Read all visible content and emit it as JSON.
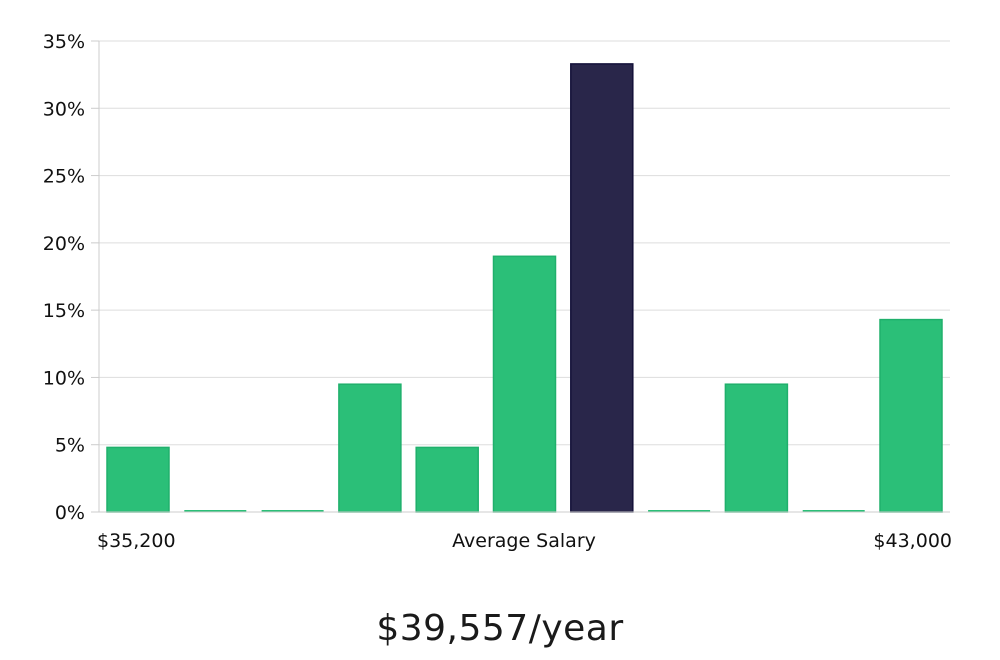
{
  "chart_data": {
    "type": "bar",
    "x_start_label": "$35,200",
    "x_end_label": "$43,000",
    "xlabel": "Average Salary",
    "y_tick_labels": [
      "0%",
      "5%",
      "10%",
      "15%",
      "20%",
      "25%",
      "30%",
      "35%"
    ],
    "ylim": [
      0,
      35
    ],
    "y_tick_step": 5,
    "grid": true,
    "values": [
      4.8,
      0,
      0,
      9.5,
      4.8,
      19.0,
      33.3,
      0,
      9.5,
      0,
      14.3
    ],
    "highlight_index": 6,
    "bar_color": "#2bbf78",
    "highlight_color": "#29264a",
    "grid_color": "#dddddd"
  },
  "salary": {
    "average_display": "$39,557/year"
  }
}
